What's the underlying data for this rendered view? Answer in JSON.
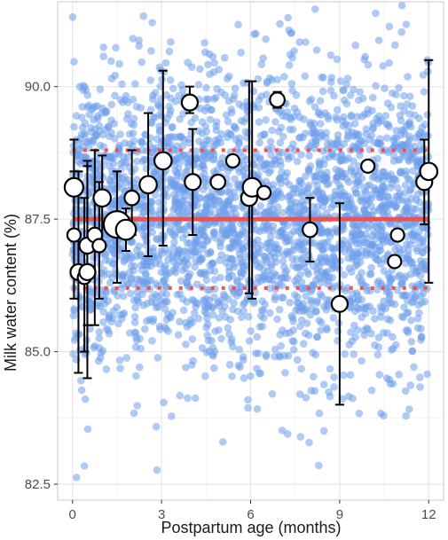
{
  "chart_data": {
    "type": "scatter",
    "title": "",
    "xlabel": "Postpartum age (months)",
    "ylabel": "Milk water content (%)",
    "xlim": [
      -0.5,
      12.5
    ],
    "ylim": [
      82.2,
      91.6
    ],
    "x_ticks": [
      0,
      3,
      6,
      9,
      12
    ],
    "x_tick_labels": [
      "0",
      "3",
      "6",
      "9",
      "12"
    ],
    "y_ticks": [
      82.5,
      85.0,
      87.5,
      90.0
    ],
    "y_tick_labels": [
      "82.5",
      "85.0",
      "87.5",
      "90.0"
    ],
    "grid": true,
    "background_points": {
      "count": 3000,
      "x_range": [
        0,
        12
      ],
      "center": 87.5,
      "sd": 1.4,
      "color": "#6d9eeb",
      "note_hidden": false
    },
    "reference_lines": [
      {
        "y": 87.5,
        "style": "solid",
        "color": "#f0504f"
      },
      {
        "y": 88.8,
        "style": "dotted",
        "color": "#f0504f"
      },
      {
        "y": 86.2,
        "style": "dotted",
        "color": "#f0504f"
      }
    ],
    "study_points": [
      {
        "x": 0.05,
        "y": 88.1,
        "lo": 87.2,
        "hi": 89.0,
        "size": 1.4
      },
      {
        "x": 0.05,
        "y": 87.2,
        "lo": 86.0,
        "hi": 88.4,
        "size": 1.0
      },
      {
        "x": 0.2,
        "y": 86.5,
        "lo": 84.6,
        "hi": 88.4,
        "size": 1.2
      },
      {
        "x": 0.4,
        "y": 86.4,
        "lo": 85.0,
        "hi": 87.9,
        "size": 1.0
      },
      {
        "x": 0.5,
        "y": 86.5,
        "lo": 84.5,
        "hi": 88.6,
        "size": 1.2
      },
      {
        "x": 0.5,
        "y": 87.0,
        "lo": 85.5,
        "hi": 88.5,
        "size": 1.2
      },
      {
        "x": 0.75,
        "y": 87.2,
        "lo": 85.5,
        "hi": 88.8,
        "size": 1.1
      },
      {
        "x": 0.9,
        "y": 87.0,
        "lo": 86.0,
        "hi": 88.2,
        "size": 1.0
      },
      {
        "x": 1.0,
        "y": 87.9,
        "lo": 87.0,
        "hi": 88.7,
        "size": 1.3
      },
      {
        "x": 1.5,
        "y": 87.4,
        "lo": 86.3,
        "hi": 88.4,
        "size": 2.0
      },
      {
        "x": 1.8,
        "y": 87.3,
        "lo": 86.9,
        "hi": 87.7,
        "size": 1.5
      },
      {
        "x": 2.0,
        "y": 87.9,
        "lo": 87.2,
        "hi": 88.8,
        "size": 1.1
      },
      {
        "x": 2.55,
        "y": 88.15,
        "lo": 86.8,
        "hi": 89.5,
        "size": 1.3
      },
      {
        "x": 3.05,
        "y": 88.6,
        "lo": 87.0,
        "hi": 90.3,
        "size": 1.3
      },
      {
        "x": 3.95,
        "y": 89.7,
        "lo": 89.5,
        "hi": 90.0,
        "size": 1.2
      },
      {
        "x": 4.05,
        "y": 88.2,
        "lo": 87.2,
        "hi": 89.2,
        "size": 1.2
      },
      {
        "x": 4.9,
        "y": 88.2,
        "lo": 88.2,
        "hi": 88.2,
        "size": 1.1
      },
      {
        "x": 5.4,
        "y": 88.6,
        "lo": 88.6,
        "hi": 88.6,
        "size": 1.0
      },
      {
        "x": 5.95,
        "y": 87.9,
        "lo": 86.1,
        "hi": 90.1,
        "size": 1.2
      },
      {
        "x": 6.05,
        "y": 88.1,
        "lo": 86.0,
        "hi": 90.1,
        "size": 1.4
      },
      {
        "x": 6.45,
        "y": 88.0,
        "lo": 88.0,
        "hi": 88.0,
        "size": 1.0
      },
      {
        "x": 6.9,
        "y": 89.75,
        "lo": 89.6,
        "hi": 89.9,
        "size": 1.1
      },
      {
        "x": 8.0,
        "y": 87.3,
        "lo": 86.7,
        "hi": 87.9,
        "size": 1.1
      },
      {
        "x": 9.0,
        "y": 85.9,
        "lo": 84.0,
        "hi": 87.8,
        "size": 1.2
      },
      {
        "x": 9.95,
        "y": 88.5,
        "lo": 88.5,
        "hi": 88.5,
        "size": 1.0
      },
      {
        "x": 10.85,
        "y": 86.7,
        "lo": 86.7,
        "hi": 86.7,
        "size": 1.0
      },
      {
        "x": 10.95,
        "y": 87.2,
        "lo": 87.2,
        "hi": 87.2,
        "size": 1.0
      },
      {
        "x": 11.85,
        "y": 88.2,
        "lo": 87.4,
        "hi": 89.0,
        "size": 1.2
      },
      {
        "x": 12.0,
        "y": 88.4,
        "lo": 86.3,
        "hi": 90.5,
        "size": 1.3
      }
    ]
  }
}
